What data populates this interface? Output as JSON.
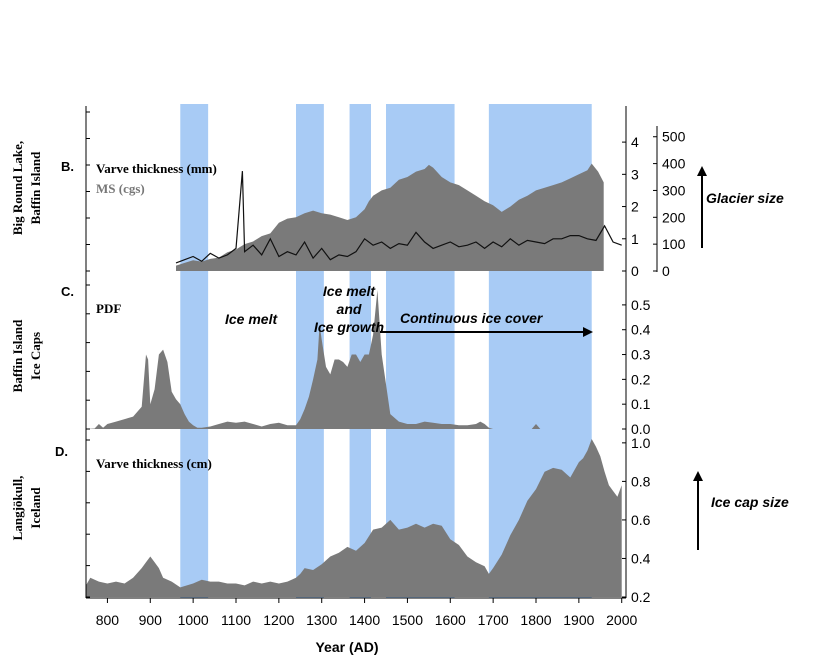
{
  "colors": {
    "band": "#a8cbf5",
    "fill": "#7a7a7a",
    "dark_line": "#111111",
    "axis": "#000000"
  },
  "chart_data": [
    {
      "id": "panelB",
      "type": "area",
      "label": "B.",
      "side_title": [
        "Big Round Lake,",
        "Baffin Island"
      ],
      "series": [
        {
          "name": "Varve thickness (mm)",
          "axis": "right_inner",
          "style": "line",
          "x": [
            960,
            980,
            1000,
            1020,
            1040,
            1060,
            1080,
            1100,
            1115,
            1120,
            1140,
            1160,
            1180,
            1200,
            1220,
            1240,
            1260,
            1280,
            1300,
            1320,
            1340,
            1360,
            1380,
            1400,
            1420,
            1440,
            1460,
            1480,
            1500,
            1520,
            1540,
            1560,
            1580,
            1600,
            1620,
            1640,
            1660,
            1680,
            1700,
            1720,
            1740,
            1760,
            1780,
            1800,
            1820,
            1840,
            1860,
            1880,
            1900,
            1920,
            1940,
            1960,
            1980,
            2000
          ],
          "y": [
            0.25,
            0.35,
            0.45,
            0.3,
            0.55,
            0.4,
            0.5,
            0.7,
            3.1,
            0.6,
            0.8,
            0.5,
            1.0,
            0.45,
            0.6,
            0.5,
            0.9,
            0.4,
            0.7,
            0.35,
            0.5,
            0.45,
            0.6,
            1.0,
            0.8,
            0.9,
            0.7,
            0.85,
            0.8,
            1.2,
            0.9,
            0.7,
            0.8,
            0.9,
            0.75,
            0.8,
            0.9,
            0.7,
            0.9,
            0.75,
            1.0,
            0.8,
            0.95,
            0.9,
            0.85,
            1.0,
            1.0,
            1.1,
            1.1,
            1.0,
            0.95,
            1.4,
            0.9,
            0.8
          ]
        },
        {
          "name": "MS (cgs)",
          "axis": "right_outer",
          "style": "area",
          "x": [
            960,
            980,
            1000,
            1020,
            1040,
            1060,
            1080,
            1100,
            1120,
            1140,
            1160,
            1180,
            1200,
            1220,
            1240,
            1260,
            1280,
            1300,
            1320,
            1340,
            1360,
            1380,
            1400,
            1410,
            1420,
            1440,
            1460,
            1480,
            1500,
            1520,
            1540,
            1550,
            1560,
            1580,
            1600,
            1620,
            1640,
            1660,
            1680,
            1700,
            1720,
            1740,
            1760,
            1780,
            1800,
            1820,
            1840,
            1860,
            1880,
            1900,
            1920,
            1930,
            1945,
            1958
          ],
          "y": [
            20,
            30,
            40,
            35,
            45,
            50,
            70,
            80,
            100,
            110,
            130,
            140,
            180,
            195,
            200,
            215,
            225,
            215,
            210,
            200,
            190,
            200,
            230,
            260,
            280,
            300,
            310,
            340,
            350,
            370,
            380,
            395,
            385,
            350,
            330,
            320,
            300,
            280,
            260,
            245,
            220,
            240,
            265,
            280,
            300,
            310,
            320,
            330,
            345,
            360,
            375,
            400,
            370,
            330
          ]
        }
      ],
      "right_inner_axis": {
        "ticks": [
          "0",
          "1",
          "2",
          "3",
          "4"
        ],
        "range": [
          0,
          4.5
        ]
      },
      "right_outer_axis": {
        "ticks": [
          "0",
          "100",
          "200",
          "300",
          "400",
          "500"
        ],
        "range": [
          0,
          540
        ]
      },
      "series_labels": [
        "Varve thickness (mm)",
        "MS (cgs)"
      ],
      "annotations": [
        "Glacier size"
      ]
    },
    {
      "id": "panelC",
      "type": "area",
      "label": "C.",
      "side_title": [
        "Baffin Island",
        "Ice Caps"
      ],
      "series": [
        {
          "name": "PDF",
          "style": "area",
          "x": [
            750,
            770,
            780,
            790,
            800,
            820,
            840,
            860,
            880,
            890,
            895,
            900,
            910,
            920,
            930,
            940,
            950,
            960,
            970,
            980,
            990,
            1000,
            1010,
            1020,
            1040,
            1060,
            1080,
            1100,
            1120,
            1140,
            1160,
            1180,
            1200,
            1220,
            1240,
            1250,
            1260,
            1270,
            1280,
            1290,
            1295,
            1300,
            1310,
            1320,
            1330,
            1340,
            1350,
            1360,
            1370,
            1380,
            1390,
            1400,
            1410,
            1420,
            1430,
            1440,
            1450,
            1460,
            1480,
            1500,
            1520,
            1540,
            1560,
            1580,
            1600,
            1620,
            1640,
            1660,
            1670,
            1680,
            1690,
            1700,
            1720,
            1760,
            1790,
            1800,
            1810,
            1820,
            1860,
            1900,
            1940,
            1960,
            1980,
            2000
          ],
          "y": [
            0,
            0.002,
            0.02,
            0.005,
            0.02,
            0.03,
            0.04,
            0.05,
            0.09,
            0.3,
            0.28,
            0.1,
            0.16,
            0.3,
            0.32,
            0.27,
            0.15,
            0.12,
            0.1,
            0.06,
            0.03,
            0.015,
            0.005,
            0.005,
            0.01,
            0.02,
            0.03,
            0.025,
            0.03,
            0.02,
            0.01,
            0.02,
            0.025,
            0.015,
            0.015,
            0.04,
            0.08,
            0.13,
            0.2,
            0.28,
            0.42,
            0.36,
            0.25,
            0.22,
            0.28,
            0.28,
            0.27,
            0.25,
            0.3,
            0.3,
            0.27,
            0.3,
            0.3,
            0.38,
            0.56,
            0.3,
            0.18,
            0.06,
            0.03,
            0.02,
            0.02,
            0.03,
            0.025,
            0.02,
            0.02,
            0.015,
            0.015,
            0.02,
            0.03,
            0.02,
            0.005,
            0.0,
            0.0,
            0.0,
            0.0,
            0.02,
            0.0,
            0.0,
            0.0,
            0.0,
            0.0,
            0.0,
            0.0,
            0.0
          ]
        }
      ],
      "right_axis": {
        "ticks": [
          "0.0",
          "0.1",
          "0.2",
          "0.3",
          "0.4",
          "0.5"
        ],
        "range": [
          0,
          0.56
        ]
      },
      "series_labels": [
        "PDF"
      ],
      "annotations": [
        "Ice melt",
        "Ice melt",
        "and",
        "Ice growth",
        "Continuous ice cover"
      ]
    },
    {
      "id": "panelD",
      "type": "area",
      "label": "D.",
      "side_title": [
        "Langjökull,",
        "Iceland"
      ],
      "series": [
        {
          "name": "Varve thickness (cm)",
          "style": "area",
          "x": [
            750,
            760,
            780,
            800,
            820,
            840,
            860,
            880,
            890,
            900,
            910,
            920,
            930,
            950,
            970,
            1000,
            1020,
            1040,
            1060,
            1080,
            1100,
            1120,
            1140,
            1160,
            1180,
            1200,
            1220,
            1240,
            1250,
            1260,
            1280,
            1300,
            1320,
            1340,
            1360,
            1380,
            1400,
            1420,
            1440,
            1460,
            1480,
            1500,
            1520,
            1540,
            1560,
            1580,
            1600,
            1620,
            1640,
            1660,
            1680,
            1690,
            1700,
            1720,
            1740,
            1760,
            1780,
            1800,
            1820,
            1840,
            1860,
            1880,
            1900,
            1910,
            1920,
            1930,
            1940,
            1950,
            1960,
            1970,
            1980,
            1990,
            2000
          ],
          "y": [
            0.26,
            0.3,
            0.28,
            0.27,
            0.28,
            0.27,
            0.3,
            0.35,
            0.38,
            0.41,
            0.38,
            0.35,
            0.3,
            0.28,
            0.25,
            0.27,
            0.29,
            0.28,
            0.28,
            0.27,
            0.27,
            0.26,
            0.28,
            0.27,
            0.28,
            0.27,
            0.28,
            0.3,
            0.32,
            0.35,
            0.34,
            0.37,
            0.41,
            0.43,
            0.46,
            0.44,
            0.48,
            0.55,
            0.56,
            0.6,
            0.55,
            0.56,
            0.58,
            0.56,
            0.58,
            0.57,
            0.5,
            0.47,
            0.41,
            0.38,
            0.36,
            0.32,
            0.35,
            0.42,
            0.52,
            0.6,
            0.7,
            0.76,
            0.85,
            0.87,
            0.86,
            0.82,
            0.9,
            0.92,
            0.96,
            1.02,
            0.98,
            0.93,
            0.85,
            0.78,
            0.75,
            0.72,
            0.78
          ]
        }
      ],
      "right_axis": {
        "ticks": [
          "0.2",
          "0.4",
          "0.6",
          "0.8",
          "1.0"
        ],
        "range": [
          0.2,
          1.02
        ]
      },
      "series_labels": [
        "Varve thickness (cm)"
      ],
      "annotations": [
        "Ice cap size"
      ]
    }
  ],
  "shaded_periods": [
    [
      970,
      1035
    ],
    [
      1240,
      1305
    ],
    [
      1365,
      1415
    ],
    [
      1450,
      1610
    ],
    [
      1690,
      1930
    ]
  ],
  "x_axis": {
    "title": "Year (AD)",
    "range": [
      750,
      2010
    ],
    "tick_values": [
      800,
      900,
      1000,
      1100,
      1200,
      1300,
      1400,
      1500,
      1600,
      1700,
      1800,
      1900,
      2000
    ],
    "tick_labels": [
      "800",
      "900",
      "1000",
      "1100",
      "1200",
      "1300",
      "1400",
      "1500",
      "1600",
      "1700",
      "1800",
      "1900",
      "2000"
    ]
  }
}
